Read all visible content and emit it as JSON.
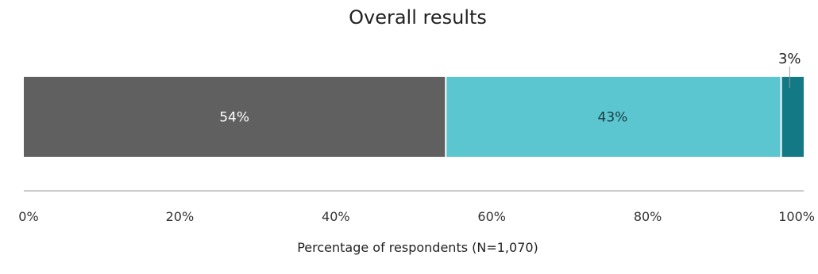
{
  "chart_data": {
    "type": "bar",
    "orientation": "horizontal-stacked",
    "title": "Overall results",
    "xlabel": "Percentage of respondents (N=1,070)",
    "ylabel": "",
    "xlim": [
      0,
      100
    ],
    "ticks": [
      "0%",
      "20%",
      "40%",
      "60%",
      "80%",
      "100%"
    ],
    "grid": false,
    "series": [
      {
        "value": 54,
        "label": "54%",
        "color": "#606060",
        "label_color": "#ffffff",
        "label_position": "inside"
      },
      {
        "value": 43,
        "label": "43%",
        "color": "#5bc6d0",
        "label_color": "#1a3a40",
        "label_position": "inside"
      },
      {
        "value": 3,
        "label": "3%",
        "color": "#137a85",
        "label_color": "#222222",
        "label_position": "above"
      }
    ]
  }
}
